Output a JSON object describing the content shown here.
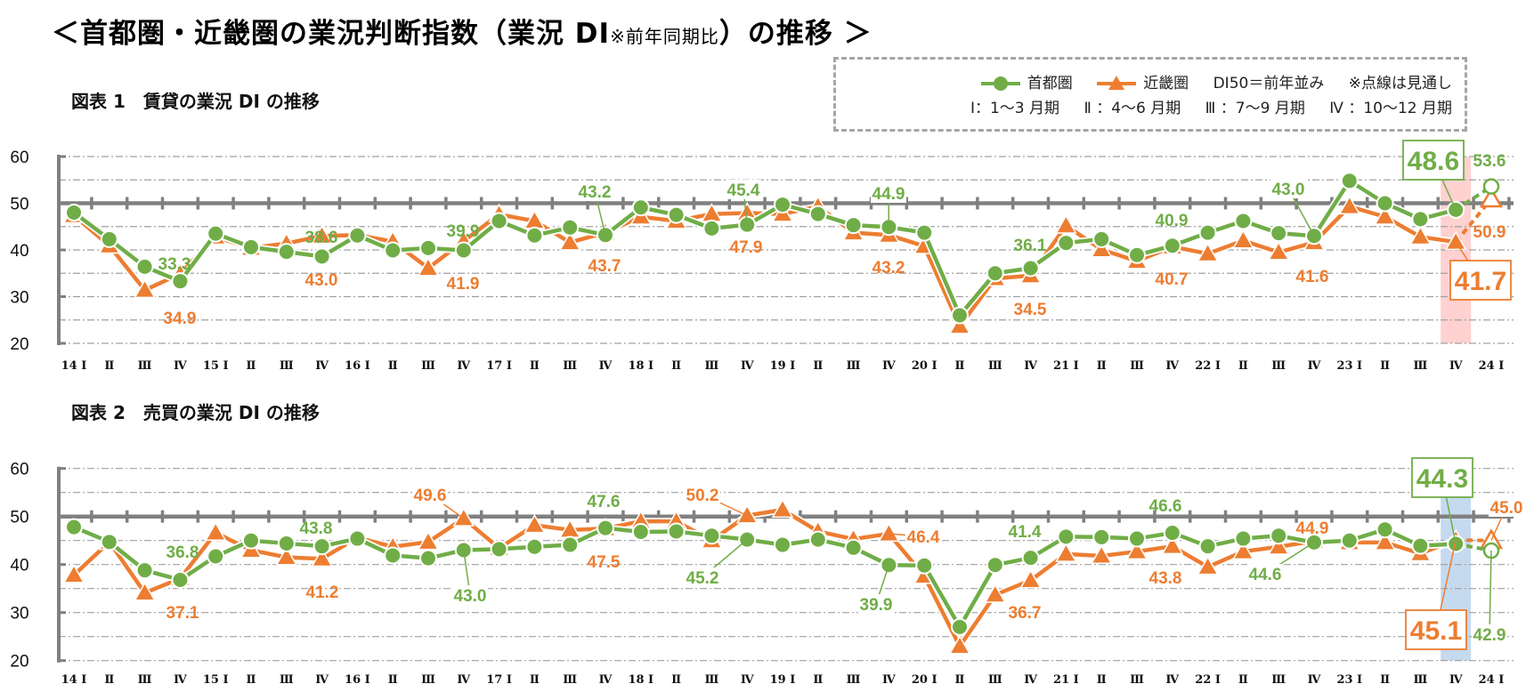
{
  "title": {
    "main": "＜首都圏・近畿圏の業況判断指数（業況 DI",
    "note": "※前年同期比",
    "end": "）の推移 ＞"
  },
  "legend": {
    "series": [
      {
        "label": "首都圏",
        "color": "#70AD47",
        "marker": "circle"
      },
      {
        "label": "近畿圏",
        "color": "#ED7D31",
        "marker": "triangle"
      }
    ],
    "notes": [
      "DI50＝前年並み",
      "※点線は見通し"
    ],
    "quarters": [
      "Ⅰ：1〜3 月期",
      "Ⅱ ：4〜6 月期",
      "Ⅲ ：7〜9 月期",
      "Ⅳ ：10〜12 月期"
    ]
  },
  "chart_data": [
    {
      "type": "line",
      "title": "図表 1　賃貸の業況 DI の推移",
      "categories": [
        "14 Ⅰ",
        "Ⅱ",
        "Ⅲ",
        "Ⅳ",
        "15 Ⅰ",
        "Ⅱ",
        "Ⅲ",
        "Ⅳ",
        "16 Ⅰ",
        "Ⅱ",
        "Ⅲ",
        "Ⅳ",
        "17 Ⅰ",
        "Ⅱ",
        "Ⅲ",
        "Ⅳ",
        "18 Ⅰ",
        "Ⅱ",
        "Ⅲ",
        "Ⅳ",
        "19 Ⅰ",
        "Ⅱ",
        "Ⅲ",
        "Ⅳ",
        "20 Ⅰ",
        "Ⅱ",
        "Ⅲ",
        "Ⅳ",
        "21 Ⅰ",
        "Ⅱ",
        "Ⅲ",
        "Ⅳ",
        "22 Ⅰ",
        "Ⅱ",
        "Ⅲ",
        "Ⅳ",
        "23 Ⅰ",
        "Ⅱ",
        "Ⅲ",
        "Ⅳ",
        "24 Ⅰ"
      ],
      "ylim": [
        20,
        60
      ],
      "yticks": [
        "20",
        "30",
        "40",
        "50",
        "60"
      ],
      "reference_line": 50,
      "grid": true,
      "last_point_is_forecast": true,
      "highlight_category_index": 39,
      "highlight_color": "#FFD1D1",
      "series": [
        {
          "name": "首都圏",
          "color": "#70AD47",
          "marker": "circle",
          "values": [
            48.0,
            42.3,
            36.4,
            33.3,
            43.5,
            40.6,
            39.6,
            38.6,
            43.1,
            39.9,
            40.4,
            39.9,
            46.2,
            43.1,
            44.8,
            43.2,
            49.1,
            47.5,
            44.6,
            45.4,
            49.7,
            47.7,
            45.3,
            44.9,
            43.7,
            26.0,
            35.0,
            36.1,
            41.5,
            42.3,
            38.9,
            40.9,
            43.7,
            46.2,
            43.6,
            43.0,
            54.8,
            50.0,
            46.6,
            48.6,
            53.6
          ]
        },
        {
          "name": "近畿圏",
          "color": "#ED7D31",
          "marker": "triangle",
          "values": [
            47.4,
            40.9,
            31.4,
            34.9,
            42.8,
            40.4,
            41.4,
            43.0,
            43.2,
            41.8,
            36.1,
            41.9,
            47.6,
            46.2,
            41.6,
            43.7,
            47.1,
            46.2,
            47.7,
            47.9,
            47.7,
            49.3,
            43.7,
            43.2,
            40.8,
            23.7,
            33.9,
            34.5,
            45.2,
            40.1,
            37.6,
            40.7,
            39.2,
            42.0,
            39.5,
            41.6,
            49.3,
            47.1,
            42.8,
            41.7,
            50.9
          ]
        }
      ],
      "annotations": [
        {
          "series": 0,
          "index": 3,
          "text": "33.3"
        },
        {
          "series": 1,
          "index": 3,
          "text": "34.9"
        },
        {
          "series": 0,
          "index": 7,
          "text": "38.6"
        },
        {
          "series": 1,
          "index": 7,
          "text": "43.0"
        },
        {
          "series": 0,
          "index": 11,
          "text": "39.9"
        },
        {
          "series": 1,
          "index": 11,
          "text": "41.9"
        },
        {
          "series": 0,
          "index": 15,
          "text": "43.2"
        },
        {
          "series": 1,
          "index": 15,
          "text": "43.7"
        },
        {
          "series": 0,
          "index": 19,
          "text": "45.4"
        },
        {
          "series": 1,
          "index": 19,
          "text": "47.9"
        },
        {
          "series": 0,
          "index": 23,
          "text": "44.9"
        },
        {
          "series": 1,
          "index": 23,
          "text": "43.2"
        },
        {
          "series": 0,
          "index": 27,
          "text": "36.1"
        },
        {
          "series": 1,
          "index": 27,
          "text": "34.5"
        },
        {
          "series": 0,
          "index": 31,
          "text": "40.9"
        },
        {
          "series": 1,
          "index": 31,
          "text": "40.7"
        },
        {
          "series": 0,
          "index": 35,
          "text": "43.0"
        },
        {
          "series": 1,
          "index": 35,
          "text": "41.6"
        },
        {
          "series": 0,
          "index": 39,
          "text": "48.6",
          "boxed": true
        },
        {
          "series": 0,
          "index": 40,
          "text": "53.6"
        },
        {
          "series": 1,
          "index": 40,
          "text": "50.9"
        },
        {
          "series": 1,
          "index": 39,
          "text": "41.7",
          "boxed": true
        }
      ]
    },
    {
      "type": "line",
      "title": "図表 2　売買の業況 DI の推移",
      "categories": [
        "14 Ⅰ",
        "Ⅱ",
        "Ⅲ",
        "Ⅳ",
        "15 Ⅰ",
        "Ⅱ",
        "Ⅲ",
        "Ⅳ",
        "16 Ⅰ",
        "Ⅱ",
        "Ⅲ",
        "Ⅳ",
        "17 Ⅰ",
        "Ⅱ",
        "Ⅲ",
        "Ⅳ",
        "18 Ⅰ",
        "Ⅱ",
        "Ⅲ",
        "Ⅳ",
        "19 Ⅰ",
        "Ⅱ",
        "Ⅲ",
        "Ⅳ",
        "20 Ⅰ",
        "Ⅱ",
        "Ⅲ",
        "Ⅳ",
        "21 Ⅰ",
        "Ⅱ",
        "Ⅲ",
        "Ⅳ",
        "22 Ⅰ",
        "Ⅱ",
        "Ⅲ",
        "Ⅳ",
        "23 Ⅰ",
        "Ⅱ",
        "Ⅲ",
        "Ⅳ",
        "24 Ⅰ"
      ],
      "ylim": [
        20,
        60
      ],
      "yticks": [
        "20",
        "30",
        "40",
        "50",
        "60"
      ],
      "reference_line": 50,
      "grid": true,
      "last_point_is_forecast": true,
      "highlight_category_index": 39,
      "highlight_color": "#C5DAEF",
      "series": [
        {
          "name": "首都圏",
          "color": "#70AD47",
          "marker": "circle",
          "values": [
            47.8,
            44.7,
            38.8,
            36.8,
            41.7,
            45.0,
            44.4,
            43.8,
            45.4,
            41.9,
            41.3,
            43.0,
            43.2,
            43.7,
            44.1,
            47.6,
            46.8,
            46.9,
            46.0,
            45.2,
            44.1,
            45.2,
            43.5,
            39.9,
            39.8,
            27.0,
            39.9,
            41.4,
            45.8,
            45.7,
            45.4,
            46.6,
            43.8,
            45.4,
            46.0,
            44.6,
            45.0,
            47.3,
            43.9,
            44.3,
            42.9
          ]
        },
        {
          "name": "近畿圏",
          "color": "#ED7D31",
          "marker": "triangle",
          "values": [
            37.8,
            44.7,
            34.1,
            37.1,
            46.6,
            43.0,
            41.5,
            41.2,
            45.6,
            43.7,
            44.7,
            49.6,
            43.4,
            48.2,
            47.2,
            47.5,
            49.0,
            49.0,
            45.0,
            50.2,
            51.4,
            46.9,
            45.3,
            46.4,
            37.6,
            23.0,
            33.7,
            36.7,
            42.2,
            41.8,
            42.7,
            43.8,
            39.5,
            42.7,
            43.7,
            44.9,
            44.6,
            44.6,
            42.3,
            45.1,
            45.0
          ]
        }
      ],
      "annotations": [
        {
          "series": 0,
          "index": 3,
          "text": "36.8"
        },
        {
          "series": 1,
          "index": 3,
          "text": "37.1"
        },
        {
          "series": 0,
          "index": 7,
          "text": "43.8"
        },
        {
          "series": 1,
          "index": 7,
          "text": "41.2"
        },
        {
          "series": 1,
          "index": 11,
          "text": "49.6"
        },
        {
          "series": 0,
          "index": 11,
          "text": "43.0"
        },
        {
          "series": 0,
          "index": 15,
          "text": "47.6"
        },
        {
          "series": 1,
          "index": 15,
          "text": "47.5"
        },
        {
          "series": 1,
          "index": 19,
          "text": "50.2"
        },
        {
          "series": 0,
          "index": 19,
          "text": "45.2"
        },
        {
          "series": 1,
          "index": 23,
          "text": "46.4"
        },
        {
          "series": 0,
          "index": 23,
          "text": "39.9"
        },
        {
          "series": 0,
          "index": 27,
          "text": "41.4"
        },
        {
          "series": 1,
          "index": 27,
          "text": "36.7"
        },
        {
          "series": 0,
          "index": 31,
          "text": "46.6"
        },
        {
          "series": 1,
          "index": 31,
          "text": "43.8"
        },
        {
          "series": 1,
          "index": 35,
          "text": "44.9"
        },
        {
          "series": 0,
          "index": 35,
          "text": "44.6"
        },
        {
          "series": 0,
          "index": 39,
          "text": "44.3",
          "boxed": true
        },
        {
          "series": 1,
          "index": 39,
          "text": "45.1",
          "boxed": true
        },
        {
          "series": 1,
          "index": 40,
          "text": "45.0"
        },
        {
          "series": 0,
          "index": 40,
          "text": "42.9"
        }
      ]
    }
  ]
}
